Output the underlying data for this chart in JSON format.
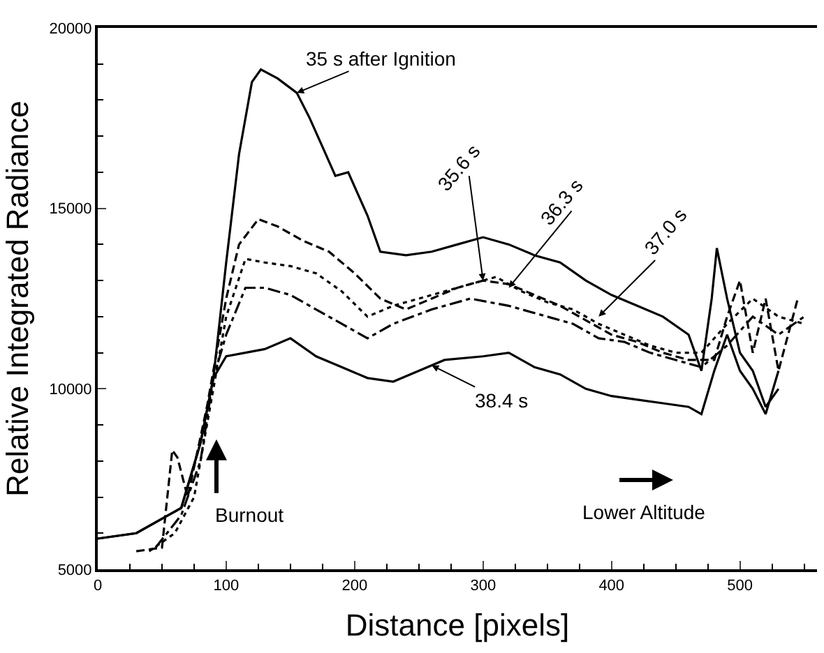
{
  "chart_data": {
    "type": "line",
    "xlabel": "Distance [pixels]",
    "ylabel": "Relative Integrated Radiance",
    "xlim": [
      0,
      560
    ],
    "xticks": [
      0,
      100,
      200,
      300,
      400,
      500
    ],
    "ylim": [
      5000,
      20000
    ],
    "yticks": [
      5000,
      10000,
      15000,
      20000
    ],
    "marker": "none",
    "series": [
      {
        "color": "#000000",
        "line_style": "solid",
        "x": [
          0,
          30,
          55,
          65,
          80,
          90,
          100,
          110,
          120,
          127,
          140,
          155,
          165,
          175,
          185,
          195,
          210,
          220,
          240,
          260,
          280,
          300,
          320,
          340,
          360,
          380,
          400,
          420,
          440,
          460,
          470,
          478,
          482,
          490,
          500,
          510,
          520,
          530
        ],
        "values": [
          5850,
          6000,
          6500,
          6700,
          8500,
          10300,
          13500,
          16500,
          18500,
          18850,
          18600,
          18200,
          17500,
          16700,
          15900,
          16000,
          14800,
          13800,
          13700,
          13800,
          14000,
          14200,
          14000,
          13700,
          13500,
          13000,
          12600,
          12300,
          12000,
          11500,
          10500,
          12500,
          13900,
          12500,
          11000,
          10500,
          9500,
          10000
        ]
      },
      {
        "color": "#000000",
        "line_style": "dashed",
        "x": [
          30,
          50,
          58,
          62,
          70,
          85,
          100,
          110,
          125,
          140,
          160,
          180,
          200,
          220,
          240,
          260,
          280,
          300,
          320,
          340,
          360,
          380,
          400,
          420,
          440,
          460,
          480,
          490,
          500,
          510,
          520,
          530,
          545
        ],
        "values": [
          5500,
          5600,
          8300,
          8100,
          7000,
          9500,
          12500,
          14000,
          14700,
          14500,
          14100,
          13800,
          13200,
          12500,
          12200,
          12500,
          12800,
          13000,
          12900,
          12600,
          12300,
          11900,
          11500,
          11300,
          11000,
          10800,
          10800,
          12000,
          13000,
          11000,
          12500,
          10500,
          12500
        ]
      },
      {
        "color": "#000000",
        "line_style": "dotted",
        "x": [
          40,
          60,
          75,
          90,
          100,
          115,
          130,
          150,
          170,
          190,
          210,
          230,
          260,
          290,
          310,
          330,
          350,
          370,
          390,
          410,
          430,
          450,
          470,
          490,
          510,
          530,
          550
        ],
        "values": [
          5500,
          6000,
          7000,
          10000,
          12000,
          13600,
          13500,
          13400,
          13200,
          12700,
          12000,
          12300,
          12600,
          12900,
          13100,
          12700,
          12400,
          12200,
          11800,
          11500,
          11200,
          11000,
          11000,
          11800,
          12500,
          12000,
          11800
        ]
      },
      {
        "color": "#000000",
        "line_style": "dashdot",
        "x": [
          45,
          65,
          80,
          90,
          100,
          115,
          130,
          150,
          170,
          190,
          210,
          230,
          260,
          290,
          320,
          350,
          370,
          390,
          410,
          430,
          450,
          470,
          490,
          510,
          530,
          550
        ],
        "values": [
          5600,
          6500,
          8000,
          10300,
          11500,
          12800,
          12800,
          12600,
          12200,
          11800,
          11400,
          11800,
          12200,
          12500,
          12300,
          12000,
          11800,
          11400,
          11300,
          11000,
          10800,
          10600,
          11200,
          12000,
          11500,
          12000
        ]
      },
      {
        "color": "#000000",
        "line_style": "solid",
        "x": [
          0,
          30,
          55,
          65,
          80,
          90,
          100,
          130,
          150,
          170,
          190,
          210,
          230,
          250,
          270,
          300,
          320,
          340,
          360,
          380,
          400,
          420,
          440,
          460,
          470,
          480,
          490,
          500,
          510,
          520,
          530
        ],
        "values": [
          5850,
          6000,
          6500,
          6700,
          8500,
          10300,
          10900,
          11100,
          11400,
          10900,
          10600,
          10300,
          10200,
          10500,
          10800,
          10900,
          11000,
          10600,
          10400,
          10000,
          9800,
          9700,
          9600,
          9500,
          9300,
          10500,
          11500,
          10500,
          10000,
          9300,
          10500
        ]
      }
    ],
    "annotations": [
      {
        "text": "35 s after Ignition",
        "x": 155,
        "y": 18200
      },
      {
        "text": "35.6 s",
        "x": 300,
        "y": 13000
      },
      {
        "text": "36.3 s",
        "x": 320,
        "y": 12800
      },
      {
        "text": "37.0 s",
        "x": 390,
        "y": 12000
      },
      {
        "text": "38.4 s",
        "x": 260,
        "y": 10650
      },
      "Burnout",
      "Lower Altitude"
    ]
  }
}
